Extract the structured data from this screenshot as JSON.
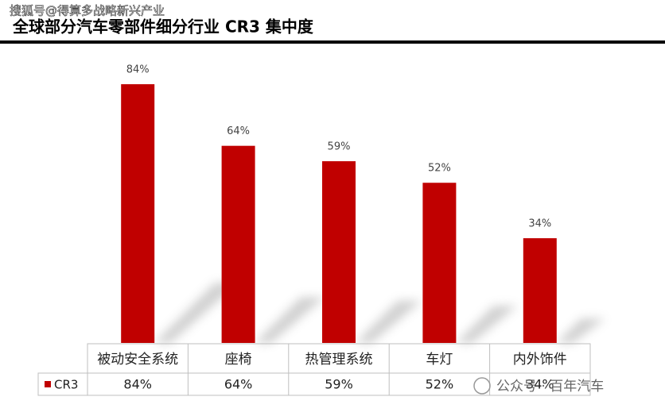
{
  "watermark_top": "搜狐号@得算多战略新兴产业",
  "watermark_bottom": "公众号 · 百年汽车",
  "chart_data": {
    "type": "bar",
    "title": "全球部分汽车零部件细分行业 CR3 集中度",
    "categories": [
      "被动安全系统",
      "座椅",
      "热管理系统",
      "车灯",
      "内外饰件"
    ],
    "series": [
      {
        "name": "CR3",
        "color": "#c00000",
        "values": [
          84,
          64,
          59,
          52,
          34
        ],
        "value_labels": [
          "84%",
          "64%",
          "59%",
          "52%",
          "34%"
        ]
      }
    ]
  }
}
